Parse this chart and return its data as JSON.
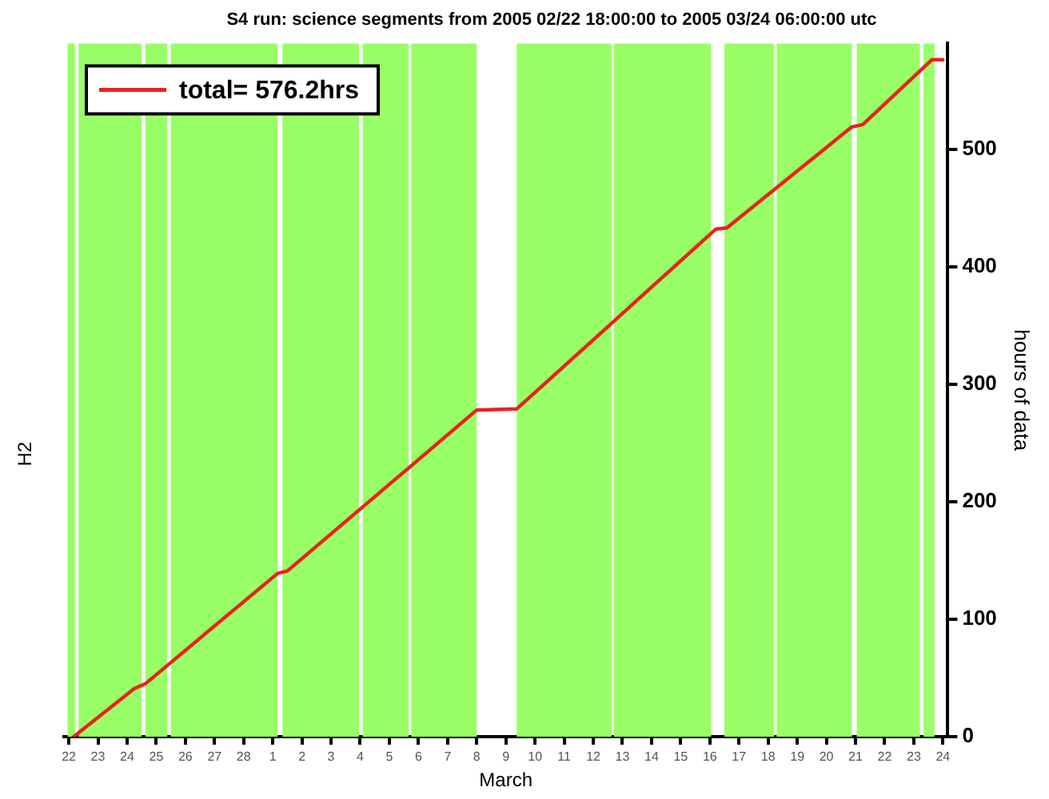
{
  "chart_data": {
    "type": "line",
    "title": "S4 run: science segments from 2005 02/22 18:00:00 to 2005 03/24 06:00:00 utc",
    "xlabel": "March",
    "ylabel": "hours of data",
    "annotations": [
      "H2"
    ],
    "xlim": [
      "2005-02-21T20:00",
      "2005-03-24T04:00"
    ],
    "xticks": [
      {
        "value": "2005-02-22",
        "label": "22"
      },
      {
        "value": "2005-02-23",
        "label": "23"
      },
      {
        "value": "2005-02-24",
        "label": "24"
      },
      {
        "value": "2005-02-25",
        "label": "25"
      },
      {
        "value": "2005-02-26",
        "label": "26"
      },
      {
        "value": "2005-02-27",
        "label": "27"
      },
      {
        "value": "2005-02-28",
        "label": "28"
      },
      {
        "value": "2005-03-01",
        "label": "1"
      },
      {
        "value": "2005-03-02",
        "label": "2"
      },
      {
        "value": "2005-03-03",
        "label": "3"
      },
      {
        "value": "2005-03-04",
        "label": "4"
      },
      {
        "value": "2005-03-05",
        "label": "5"
      },
      {
        "value": "2005-03-06",
        "label": "6"
      },
      {
        "value": "2005-03-07",
        "label": "7"
      },
      {
        "value": "2005-03-08",
        "label": "8"
      },
      {
        "value": "2005-03-09",
        "label": "9"
      },
      {
        "value": "2005-03-10",
        "label": "10"
      },
      {
        "value": "2005-03-11",
        "label": "11"
      },
      {
        "value": "2005-03-12",
        "label": "12"
      },
      {
        "value": "2005-03-13",
        "label": "13"
      },
      {
        "value": "2005-03-14",
        "label": "14"
      },
      {
        "value": "2005-03-15",
        "label": "15"
      },
      {
        "value": "2005-03-16",
        "label": "16"
      },
      {
        "value": "2005-03-17",
        "label": "17"
      },
      {
        "value": "2005-03-18",
        "label": "18"
      },
      {
        "value": "2005-03-19",
        "label": "19"
      },
      {
        "value": "2005-03-20",
        "label": "20"
      },
      {
        "value": "2005-03-21",
        "label": "21"
      },
      {
        "value": "2005-03-22",
        "label": "22"
      },
      {
        "value": "2005-03-23",
        "label": "23"
      },
      {
        "value": "2005-03-24",
        "label": "24"
      }
    ],
    "ylim": [
      0,
      590
    ],
    "yticks": [
      0,
      100,
      200,
      300,
      400,
      500
    ],
    "grid": false,
    "legend": "top left",
    "marker": "none",
    "line_style": "solid",
    "x": [
      "2005-02-22T04:00",
      "2005-02-24T06:00",
      "2005-02-24T15:00",
      "2005-03-01T04:00",
      "2005-03-01T12:00",
      "2005-03-08T00:00",
      "2005-03-09T09:00",
      "2005-03-16T05:00",
      "2005-03-16T14:00",
      "2005-03-20T21:00",
      "2005-03-21T06:00",
      "2005-03-23T15:00",
      "2005-03-24T00:00"
    ],
    "series": [
      {
        "name": "total= 576.2hrs",
        "color": "#e8221e",
        "values": [
          0,
          41,
          45,
          139,
          141,
          278,
          279,
          432,
          433,
          519,
          521,
          576.2,
          576.2
        ]
      }
    ],
    "bands": [
      {
        "axis": "x",
        "from": "2005-02-21T23:00",
        "to": "2005-02-22T05:00",
        "color": "#99ff66"
      },
      {
        "axis": "x",
        "from": "2005-02-22T08:00",
        "to": "2005-02-24T12:00",
        "color": "#99ff66"
      },
      {
        "axis": "x",
        "from": "2005-02-24T15:00",
        "to": "2005-02-25T09:00",
        "color": "#99ff66"
      },
      {
        "axis": "x",
        "from": "2005-02-25T12:00",
        "to": "2005-03-01T04:00",
        "color": "#99ff66"
      },
      {
        "axis": "x",
        "from": "2005-03-01T08:00",
        "to": "2005-03-03T23:00",
        "color": "#99ff66"
      },
      {
        "axis": "x",
        "from": "2005-03-04T02:00",
        "to": "2005-03-05T16:00",
        "color": "#99ff66"
      },
      {
        "axis": "x",
        "from": "2005-03-05T18:00",
        "to": "2005-03-08T00:00",
        "color": "#99ff66"
      },
      {
        "axis": "x",
        "from": "2005-03-09T09:00",
        "to": "2005-03-12T15:00",
        "color": "#99ff66"
      },
      {
        "axis": "x",
        "from": "2005-03-12T17:00",
        "to": "2005-03-16T01:00",
        "color": "#99ff66"
      },
      {
        "axis": "x",
        "from": "2005-03-16T12:00",
        "to": "2005-03-18T05:00",
        "color": "#99ff66"
      },
      {
        "axis": "x",
        "from": "2005-03-18T07:00",
        "to": "2005-03-20T21:00",
        "color": "#99ff66"
      },
      {
        "axis": "x",
        "from": "2005-03-21T01:00",
        "to": "2005-03-23T05:00",
        "color": "#99ff66"
      },
      {
        "axis": "x",
        "from": "2005-03-23T08:00",
        "to": "2005-03-23T17:00",
        "color": "#99ff66"
      }
    ]
  }
}
